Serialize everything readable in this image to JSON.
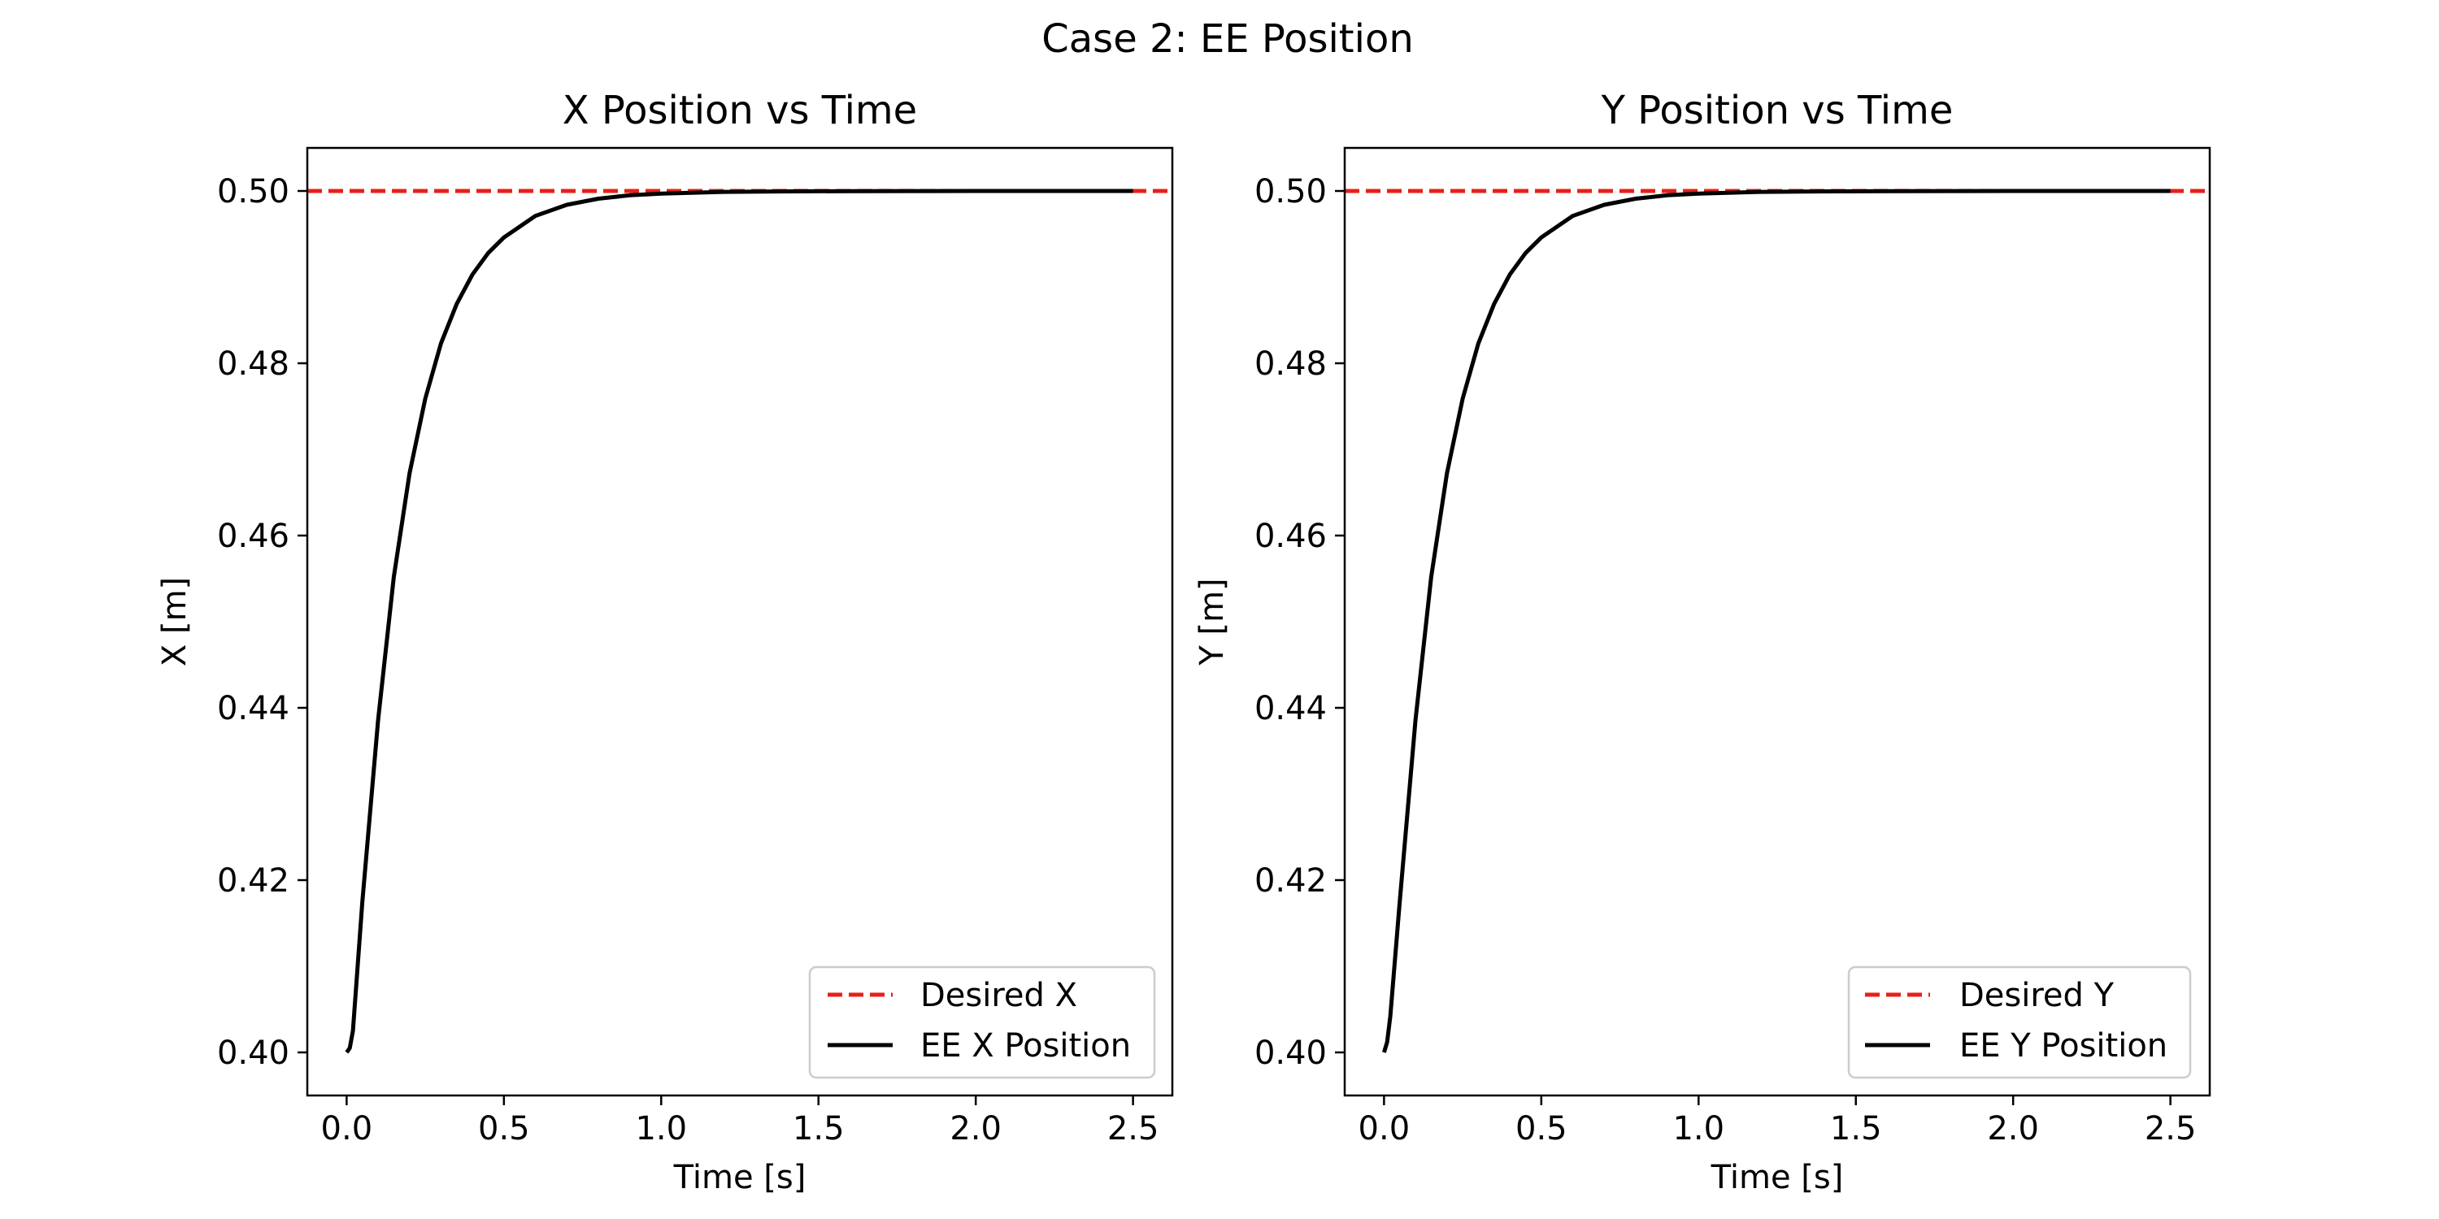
{
  "figure": {
    "suptitle": "Case 2: EE Position"
  },
  "chart_data": [
    {
      "type": "line",
      "title": "X Position vs Time",
      "xlabel": "Time [s]",
      "ylabel": "X [m]",
      "xlim": [
        -0.125,
        2.625
      ],
      "ylim": [
        0.395,
        0.505
      ],
      "xticks": [
        0.0,
        0.5,
        1.0,
        1.5,
        2.0,
        2.5
      ],
      "xtick_labels": [
        "0.0",
        "0.5",
        "1.0",
        "1.5",
        "2.0",
        "2.5"
      ],
      "yticks": [
        0.4,
        0.42,
        0.44,
        0.46,
        0.48,
        0.5
      ],
      "ytick_labels": [
        "0.40",
        "0.42",
        "0.44",
        "0.46",
        "0.48",
        "0.50"
      ],
      "grid": false,
      "legend_position": "lower right",
      "series": [
        {
          "name": "Desired X",
          "style": "dashed",
          "color": "#e8201a",
          "x": [
            -0.125,
            2.625
          ],
          "y": [
            0.5,
            0.5
          ]
        },
        {
          "name": "EE X Position",
          "style": "solid",
          "color": "#000000",
          "x": [
            0.0,
            0.01,
            0.02,
            0.05,
            0.1,
            0.15,
            0.2,
            0.25,
            0.3,
            0.35,
            0.4,
            0.45,
            0.5,
            0.6,
            0.7,
            0.8,
            0.9,
            1.0,
            1.2,
            1.4,
            1.6,
            1.8,
            2.0,
            2.2,
            2.5
          ],
          "y": [
            0.4,
            0.4005,
            0.4025,
            0.4175,
            0.4386,
            0.4552,
            0.4672,
            0.4759,
            0.4823,
            0.4869,
            0.4903,
            0.4928,
            0.4946,
            0.4971,
            0.4984,
            0.4991,
            0.4995,
            0.4997,
            0.4999,
            0.49995,
            0.49998,
            0.49999,
            0.5,
            0.5,
            0.5
          ]
        }
      ]
    },
    {
      "type": "line",
      "title": "Y Position vs Time",
      "xlabel": "Time [s]",
      "ylabel": "Y [m]",
      "xlim": [
        -0.125,
        2.625
      ],
      "ylim": [
        0.395,
        0.505
      ],
      "xticks": [
        0.0,
        0.5,
        1.0,
        1.5,
        2.0,
        2.5
      ],
      "xtick_labels": [
        "0.0",
        "0.5",
        "1.0",
        "1.5",
        "2.0",
        "2.5"
      ],
      "yticks": [
        0.4,
        0.42,
        0.44,
        0.46,
        0.48,
        0.5
      ],
      "ytick_labels": [
        "0.40",
        "0.42",
        "0.44",
        "0.46",
        "0.48",
        "0.50"
      ],
      "grid": false,
      "legend_position": "lower right",
      "series": [
        {
          "name": "Desired Y",
          "style": "dashed",
          "color": "#e8201a",
          "x": [
            -0.125,
            2.625
          ],
          "y": [
            0.5,
            0.5
          ]
        },
        {
          "name": "EE Y Position",
          "style": "solid",
          "color": "#000000",
          "x": [
            0.0,
            0.01,
            0.02,
            0.05,
            0.1,
            0.15,
            0.2,
            0.25,
            0.3,
            0.35,
            0.4,
            0.45,
            0.5,
            0.6,
            0.7,
            0.8,
            0.9,
            1.0,
            1.2,
            1.4,
            1.6,
            1.8,
            2.0,
            2.2,
            2.5
          ],
          "y": [
            0.4,
            0.4012,
            0.4042,
            0.4175,
            0.4386,
            0.4552,
            0.4672,
            0.4759,
            0.4823,
            0.4869,
            0.4903,
            0.4928,
            0.4946,
            0.4971,
            0.4984,
            0.4991,
            0.4995,
            0.4997,
            0.4999,
            0.49995,
            0.49998,
            0.49999,
            0.5,
            0.5,
            0.5
          ]
        }
      ]
    }
  ]
}
